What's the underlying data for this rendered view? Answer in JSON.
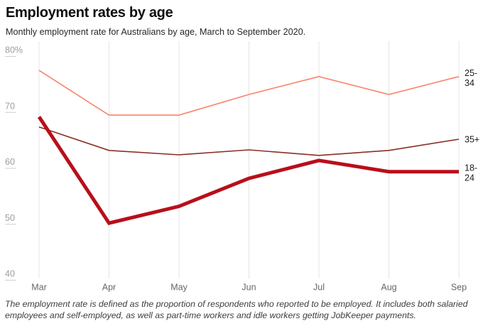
{
  "header": {
    "title": "Employment rates by age",
    "subtitle": "Monthly employment rate for Australians by age, March to September 2020."
  },
  "footer": {
    "note": "The employment rate is defined as the proportion of respondents who reported to be employed. It includes both salaried employees and self-employed, as well as part-time workers and idle workers getting JobKeeper payments."
  },
  "chart_data": {
    "type": "line",
    "title": "Employment rates by age",
    "subtitle": "Monthly employment rate for Australians by age, March to September 2020.",
    "x": [
      "Mar",
      "Apr",
      "May",
      "Jun",
      "Jul",
      "Aug",
      "Sep"
    ],
    "y_ticks": [
      "80%",
      "70",
      "60",
      "50",
      "40"
    ],
    "y_tick_values": [
      80,
      70,
      60,
      50,
      40
    ],
    "ylim": [
      40,
      82
    ],
    "grid": "vertical-only",
    "legend_position": "right-of-line-ends",
    "background": "#ffffff",
    "gridline_color": "#e4e4e4",
    "series": [
      {
        "name": "25-34",
        "label_lines": [
          "25-",
          "34"
        ],
        "color": "#f9836a",
        "width": 1.6,
        "values": [
          76.3,
          68.3,
          68.3,
          72,
          75.2,
          72,
          75.2
        ]
      },
      {
        "name": "35+",
        "label_lines": [
          "35+"
        ],
        "color": "#8a2e25",
        "width": 1.6,
        "values": [
          66.2,
          62,
          61.2,
          62.1,
          61.1,
          62,
          64
        ]
      },
      {
        "name": "18-24",
        "label_lines": [
          "18-",
          "24"
        ],
        "color": "#b80f1a",
        "width": 5,
        "values": [
          68,
          49,
          52,
          57,
          60.2,
          58.2,
          58.2
        ]
      }
    ]
  }
}
